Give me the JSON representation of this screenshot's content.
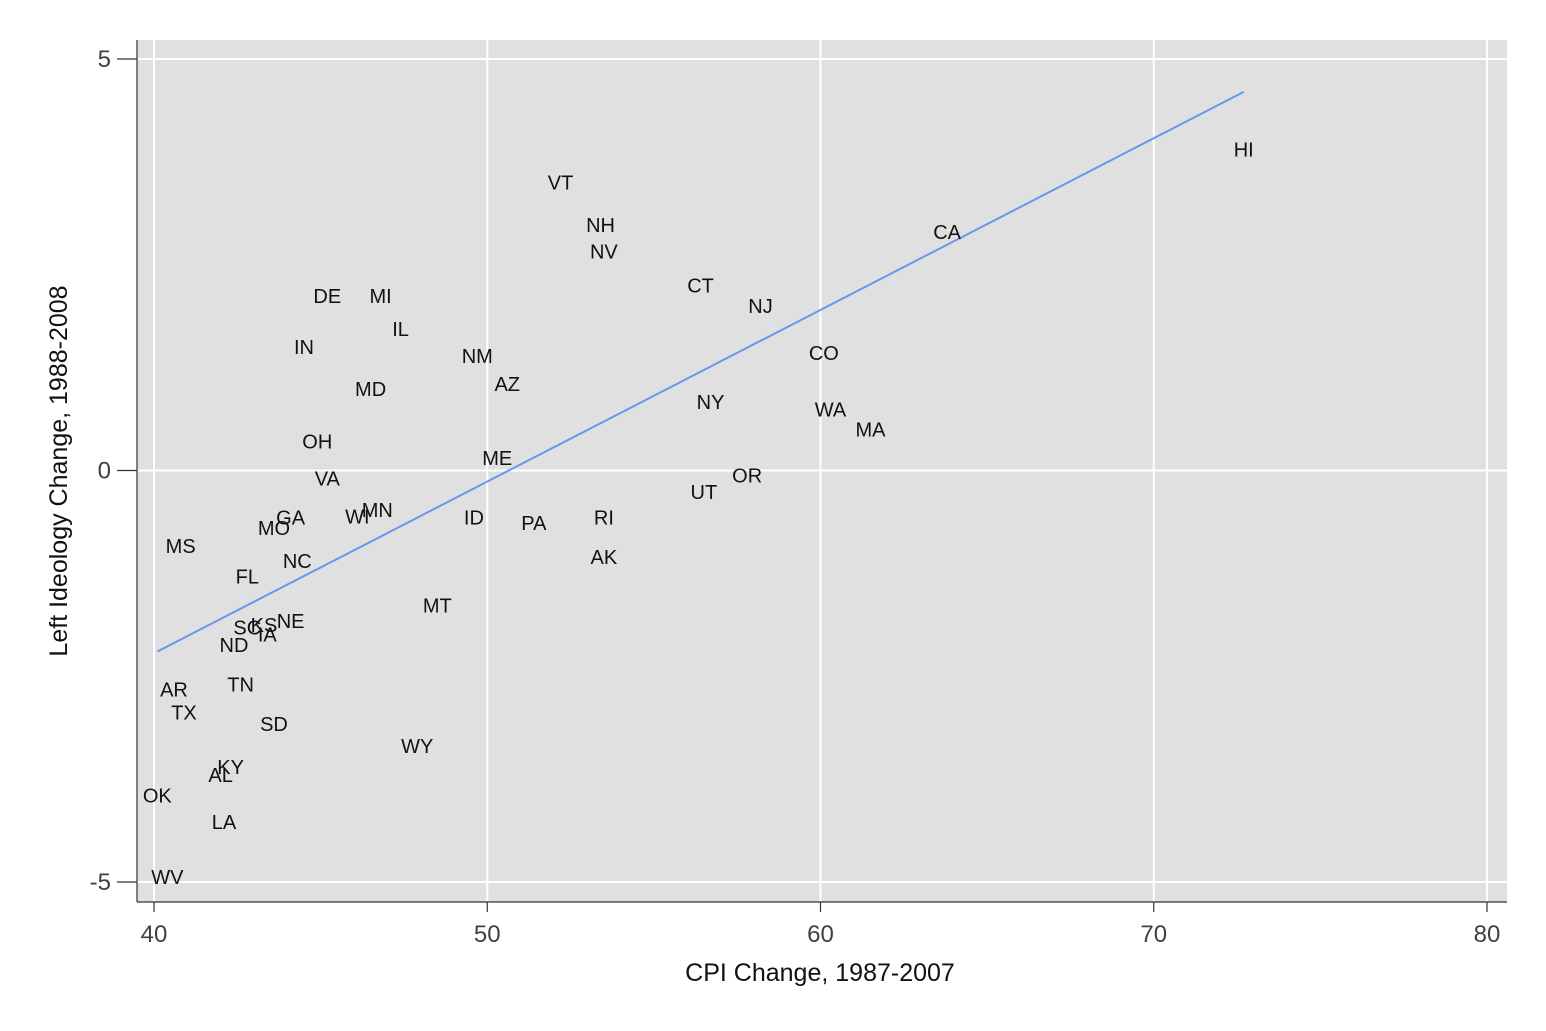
{
  "chart_data": {
    "type": "scatter",
    "title": "",
    "xlabel": "CPI Change, 1987-2007",
    "ylabel": "Left Ideology Change, 1988-2008",
    "xlim": [
      40,
      80
    ],
    "ylim": [
      -5,
      5
    ],
    "xticks": [
      40,
      50,
      60,
      70,
      80
    ],
    "yticks": [
      -5,
      0,
      5
    ],
    "xtick_labels": [
      "40",
      "50",
      "60",
      "70",
      "80"
    ],
    "ytick_labels": [
      "-5",
      "0",
      "5"
    ],
    "grid": true,
    "plot_background": "#e0e0e0",
    "grid_color": "#ffffff",
    "fit_line_color": "#6699ee",
    "marker": "label",
    "points": [
      {
        "label": "HI",
        "x": 72.7,
        "y": 3.9
      },
      {
        "label": "CA",
        "x": 63.8,
        "y": 2.9
      },
      {
        "label": "VT",
        "x": 52.2,
        "y": 3.5
      },
      {
        "label": "NH",
        "x": 53.4,
        "y": 2.98
      },
      {
        "label": "NV",
        "x": 53.5,
        "y": 2.66
      },
      {
        "label": "CT",
        "x": 56.4,
        "y": 2.25
      },
      {
        "label": "NJ",
        "x": 58.2,
        "y": 2.0
      },
      {
        "label": "CO",
        "x": 60.1,
        "y": 1.43
      },
      {
        "label": "WA",
        "x": 60.3,
        "y": 0.74
      },
      {
        "label": "MA",
        "x": 61.5,
        "y": 0.5
      },
      {
        "label": "NY",
        "x": 56.7,
        "y": 0.83
      },
      {
        "label": "OR",
        "x": 57.8,
        "y": -0.06
      },
      {
        "label": "UT",
        "x": 56.5,
        "y": -0.26
      },
      {
        "label": "RI",
        "x": 53.5,
        "y": -0.57
      },
      {
        "label": "AK",
        "x": 53.5,
        "y": -1.05
      },
      {
        "label": "PA",
        "x": 51.4,
        "y": -0.64
      },
      {
        "label": "ID",
        "x": 49.6,
        "y": -0.57
      },
      {
        "label": "ME",
        "x": 50.3,
        "y": 0.15
      },
      {
        "label": "AZ",
        "x": 50.6,
        "y": 1.05
      },
      {
        "label": "NM",
        "x": 49.7,
        "y": 1.39
      },
      {
        "label": "MT",
        "x": 48.5,
        "y": -1.64
      },
      {
        "label": "WY",
        "x": 47.9,
        "y": -3.35
      },
      {
        "label": "DE",
        "x": 45.2,
        "y": 2.12
      },
      {
        "label": "MI",
        "x": 46.8,
        "y": 2.12
      },
      {
        "label": "IL",
        "x": 47.4,
        "y": 1.72
      },
      {
        "label": "IN",
        "x": 44.5,
        "y": 1.5
      },
      {
        "label": "MD",
        "x": 46.5,
        "y": 0.99
      },
      {
        "label": "OH",
        "x": 44.9,
        "y": 0.35
      },
      {
        "label": "VA",
        "x": 45.2,
        "y": -0.1
      },
      {
        "label": "MN",
        "x": 46.7,
        "y": -0.48
      },
      {
        "label": "WI",
        "x": 46.1,
        "y": -0.56
      },
      {
        "label": "GA",
        "x": 44.1,
        "y": -0.57
      },
      {
        "label": "MO",
        "x": 43.6,
        "y": -0.7
      },
      {
        "label": "NC",
        "x": 44.3,
        "y": -1.1
      },
      {
        "label": "MS",
        "x": 40.8,
        "y": -0.92
      },
      {
        "label": "FL",
        "x": 42.8,
        "y": -1.29
      },
      {
        "label": "NE",
        "x": 44.1,
        "y": -1.83
      },
      {
        "label": "KS",
        "x": 43.3,
        "y": -1.88
      },
      {
        "label": "SC",
        "x": 42.8,
        "y": -1.91
      },
      {
        "label": "IA",
        "x": 43.4,
        "y": -1.99
      },
      {
        "label": "ND",
        "x": 42.4,
        "y": -2.12
      },
      {
        "label": "AR",
        "x": 40.6,
        "y": -2.66
      },
      {
        "label": "TN",
        "x": 42.6,
        "y": -2.6
      },
      {
        "label": "TX",
        "x": 40.9,
        "y": -2.94
      },
      {
        "label": "SD",
        "x": 43.6,
        "y": -3.08
      },
      {
        "label": "KY",
        "x": 42.3,
        "y": -3.6
      },
      {
        "label": "AL",
        "x": 42.0,
        "y": -3.7
      },
      {
        "label": "OK",
        "x": 40.1,
        "y": -3.95
      },
      {
        "label": "LA",
        "x": 42.1,
        "y": -4.27
      },
      {
        "label": "WV",
        "x": 40.4,
        "y": -4.94
      }
    ],
    "fit_line": {
      "x": [
        40.1,
        72.7
      ],
      "y": [
        -2.2,
        4.6
      ]
    }
  }
}
